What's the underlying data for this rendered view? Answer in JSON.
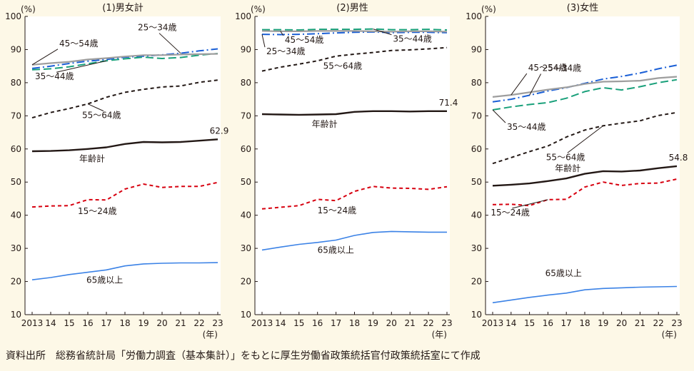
{
  "colors": {
    "background": "#fdf8e7",
    "plot_background": "#ffffff",
    "axis": "#231815"
  },
  "series_styles": [
    {
      "key": "total",
      "color": "#231815",
      "dash": "solid",
      "width": 2.4
    },
    {
      "key": "15-24",
      "color": "#d7000f",
      "dash": "short",
      "width": 2.0
    },
    {
      "key": "25-34",
      "color": "#1a5fd6",
      "dash": "dashdot",
      "width": 2.0
    },
    {
      "key": "35-44",
      "color": "#19a07a",
      "dash": "long",
      "width": 2.0
    },
    {
      "key": "45-54",
      "color": "#9e9e9e",
      "dash": "solid",
      "width": 2.2
    },
    {
      "key": "55-64",
      "color": "#231815",
      "dash": "short",
      "width": 2.0
    },
    {
      "key": "65+",
      "color": "#3b82e6",
      "dash": "solid",
      "width": 1.6
    }
  ],
  "source_note": "資料出所　総務省統計局「労働力調査（基本集計）」をもとに厚生労働省政策統括官付政策統括室にて作成",
  "chart_data": [
    {
      "type": "line",
      "title": "(1)男女計",
      "ylabel": "(%)",
      "xunit": "(年)",
      "ylim": [
        10,
        100
      ],
      "yticks": [
        10,
        20,
        30,
        40,
        50,
        60,
        70,
        80,
        90,
        100
      ],
      "x": [
        2013,
        2014,
        2015,
        2016,
        2017,
        2018,
        2019,
        2020,
        2021,
        2022,
        2023
      ],
      "xtick_labels": [
        "2013",
        "14",
        "15",
        "16",
        "17",
        "18",
        "19",
        "20",
        "21",
        "22",
        "23"
      ],
      "series": [
        {
          "key": "total",
          "name": "年齢計",
          "values": [
            59.3,
            59.4,
            59.6,
            60.0,
            60.5,
            61.5,
            62.1,
            62.0,
            62.1,
            62.5,
            62.9
          ]
        },
        {
          "key": "15-24",
          "name": "15～24歳",
          "values": [
            42.5,
            42.8,
            42.9,
            44.7,
            44.6,
            47.9,
            49.4,
            48.4,
            48.7,
            48.7,
            49.9
          ]
        },
        {
          "key": "25-34",
          "name": "25～34歳",
          "values": [
            84.3,
            85.0,
            85.8,
            86.5,
            87.0,
            87.7,
            88.0,
            88.4,
            88.9,
            89.6,
            90.2
          ]
        },
        {
          "key": "35-44",
          "name": "35～44歳",
          "values": [
            83.9,
            84.2,
            84.8,
            85.7,
            86.6,
            87.2,
            87.7,
            87.3,
            87.6,
            88.3,
            88.8
          ]
        },
        {
          "key": "45-54",
          "name": "45～54歳",
          "values": [
            85.4,
            85.9,
            86.3,
            87.0,
            87.4,
            87.9,
            88.3,
            88.3,
            88.5,
            88.6,
            88.7
          ]
        },
        {
          "key": "55-64",
          "name": "55～64歳",
          "values": [
            69.4,
            71.0,
            72.2,
            73.6,
            75.6,
            77.1,
            78.0,
            78.7,
            79.0,
            80.1,
            80.8
          ]
        },
        {
          "key": "65+",
          "name": "65歳以上",
          "values": [
            20.5,
            21.2,
            22.1,
            22.8,
            23.5,
            24.7,
            25.3,
            25.5,
            25.6,
            25.6,
            25.7
          ]
        }
      ],
      "annotations": [
        {
          "key": "total",
          "text": "62.9"
        }
      ]
    },
    {
      "type": "line",
      "title": "(2)男性",
      "ylabel": "(%)",
      "xunit": "(年)",
      "ylim": [
        10,
        100
      ],
      "yticks": [
        10,
        20,
        30,
        40,
        50,
        60,
        70,
        80,
        90,
        100
      ],
      "x": [
        2013,
        2014,
        2015,
        2016,
        2017,
        2018,
        2019,
        2020,
        2021,
        2022,
        2023
      ],
      "xtick_labels": [
        "2013",
        "14",
        "15",
        "16",
        "17",
        "18",
        "19",
        "20",
        "21",
        "22",
        "23"
      ],
      "series": [
        {
          "key": "total",
          "name": "年齢計",
          "values": [
            70.5,
            70.4,
            70.3,
            70.4,
            70.5,
            71.2,
            71.4,
            71.4,
            71.3,
            71.4,
            71.4
          ]
        },
        {
          "key": "15-24",
          "name": "15～24歳",
          "values": [
            41.9,
            42.4,
            42.9,
            44.8,
            44.4,
            47.2,
            48.7,
            48.2,
            48.1,
            47.8,
            48.6
          ]
        },
        {
          "key": "25-34",
          "name": "25～34歳",
          "values": [
            94.6,
            94.5,
            94.6,
            94.8,
            95.0,
            95.2,
            95.3,
            95.1,
            95.2,
            95.2,
            95.1
          ]
        },
        {
          "key": "35-44",
          "name": "35～44歳",
          "values": [
            96.0,
            96.0,
            95.9,
            96.1,
            96.1,
            96.1,
            96.2,
            96.0,
            96.0,
            96.1,
            95.9
          ]
        },
        {
          "key": "45-54",
          "name": "45～54歳",
          "values": [
            95.6,
            95.5,
            95.5,
            95.6,
            95.6,
            95.6,
            95.5,
            95.4,
            95.5,
            95.5,
            95.4
          ]
        },
        {
          "key": "55-64",
          "name": "55～64歳",
          "values": [
            83.5,
            84.7,
            85.6,
            86.6,
            88.0,
            88.6,
            89.1,
            89.7,
            89.9,
            90.2,
            90.6
          ]
        },
        {
          "key": "65+",
          "name": "65歳以上",
          "values": [
            29.5,
            30.4,
            31.2,
            31.8,
            32.5,
            33.9,
            34.8,
            35.1,
            35.0,
            34.9,
            34.9
          ]
        }
      ],
      "annotations": [
        {
          "key": "total",
          "text": "71.4"
        }
      ]
    },
    {
      "type": "line",
      "title": "(3)女性",
      "ylabel": "(%)",
      "xunit": "(年)",
      "ylim": [
        10,
        100
      ],
      "yticks": [
        10,
        20,
        30,
        40,
        50,
        60,
        70,
        80,
        90,
        100
      ],
      "x": [
        2013,
        2014,
        2015,
        2016,
        2017,
        2018,
        2019,
        2020,
        2021,
        2022,
        2023
      ],
      "xtick_labels": [
        "2013",
        "14",
        "15",
        "16",
        "17",
        "18",
        "19",
        "20",
        "21",
        "22",
        "23"
      ],
      "series": [
        {
          "key": "total",
          "name": "年齢計",
          "values": [
            48.9,
            49.2,
            49.6,
            50.3,
            51.1,
            52.5,
            53.3,
            53.2,
            53.5,
            54.2,
            54.8
          ]
        },
        {
          "key": "15-24",
          "name": "15～24歳",
          "values": [
            43.2,
            43.3,
            42.9,
            44.7,
            44.8,
            48.5,
            50.0,
            49.0,
            49.6,
            49.7,
            50.9
          ]
        },
        {
          "key": "25-34",
          "name": "25～34歳",
          "values": [
            74.2,
            75.0,
            76.2,
            77.5,
            78.5,
            79.8,
            81.1,
            81.9,
            82.9,
            84.2,
            85.3
          ]
        },
        {
          "key": "35-44",
          "name": "35～44歳",
          "values": [
            71.8,
            72.7,
            73.4,
            74.0,
            75.3,
            77.3,
            78.5,
            77.8,
            78.8,
            80.0,
            80.9
          ]
        },
        {
          "key": "45-54",
          "name": "45～54歳",
          "values": [
            75.7,
            76.3,
            77.1,
            77.9,
            78.6,
            79.6,
            80.3,
            80.4,
            80.6,
            81.4,
            81.8
          ]
        },
        {
          "key": "55-64",
          "name": "55～64歳",
          "values": [
            55.6,
            57.4,
            59.2,
            60.9,
            63.6,
            65.7,
            67.0,
            67.8,
            68.5,
            70.1,
            71.0
          ]
        },
        {
          "key": "65+",
          "name": "65歳以上",
          "values": [
            13.6,
            14.4,
            15.2,
            15.9,
            16.5,
            17.5,
            17.9,
            18.1,
            18.3,
            18.4,
            18.5
          ]
        }
      ],
      "annotations": [
        {
          "key": "total",
          "text": "54.8"
        }
      ]
    }
  ]
}
